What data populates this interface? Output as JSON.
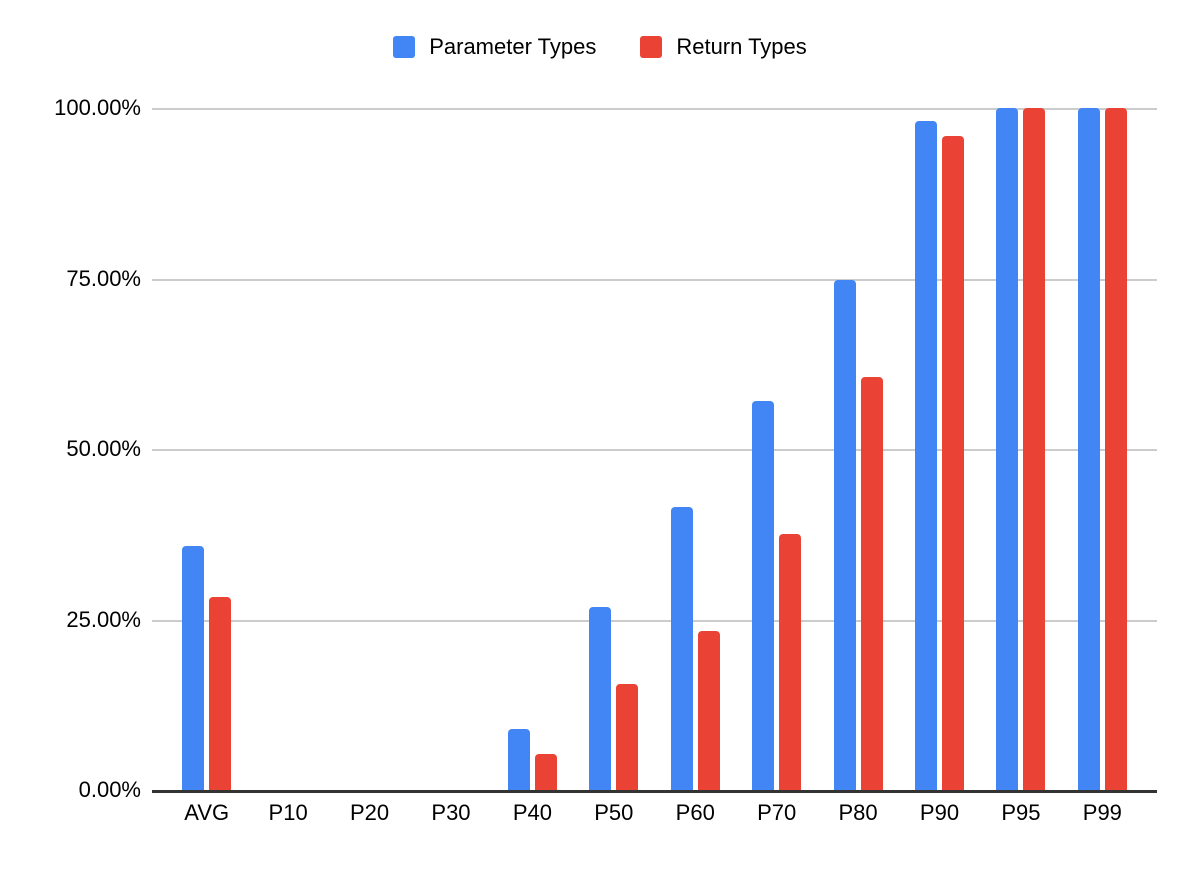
{
  "chart_data": {
    "type": "bar",
    "title": "",
    "xlabel": "",
    "ylabel": "",
    "categories": [
      "AVG",
      "P10",
      "P20",
      "P30",
      "P40",
      "P50",
      "P60",
      "P70",
      "P80",
      "P90",
      "P95",
      "P99"
    ],
    "series": [
      {
        "name": "Parameter Types",
        "color": "#4285F4",
        "values": [
          35.8,
          0,
          0,
          0,
          8.9,
          26.8,
          41.5,
          57.0,
          74.8,
          98.1,
          100,
          100
        ]
      },
      {
        "name": "Return Types",
        "color": "#EA4335",
        "values": [
          28.3,
          0,
          0,
          0,
          5.3,
          15.5,
          23.3,
          37.5,
          60.6,
          95.9,
          100,
          100
        ]
      }
    ],
    "ylim": [
      0,
      100
    ],
    "yticks": [
      {
        "value": 100,
        "label": "100.00%"
      },
      {
        "value": 75,
        "label": "75.00%"
      },
      {
        "value": 50,
        "label": "50.00%"
      },
      {
        "value": 25,
        "label": "25.00%"
      },
      {
        "value": 0,
        "label": "0.00%"
      }
    ],
    "grid": true,
    "legend_position": "top"
  },
  "colors": {
    "background": "#ffffff",
    "grid": "#cccccc",
    "axis_line": "#333333",
    "text": "#000000"
  }
}
